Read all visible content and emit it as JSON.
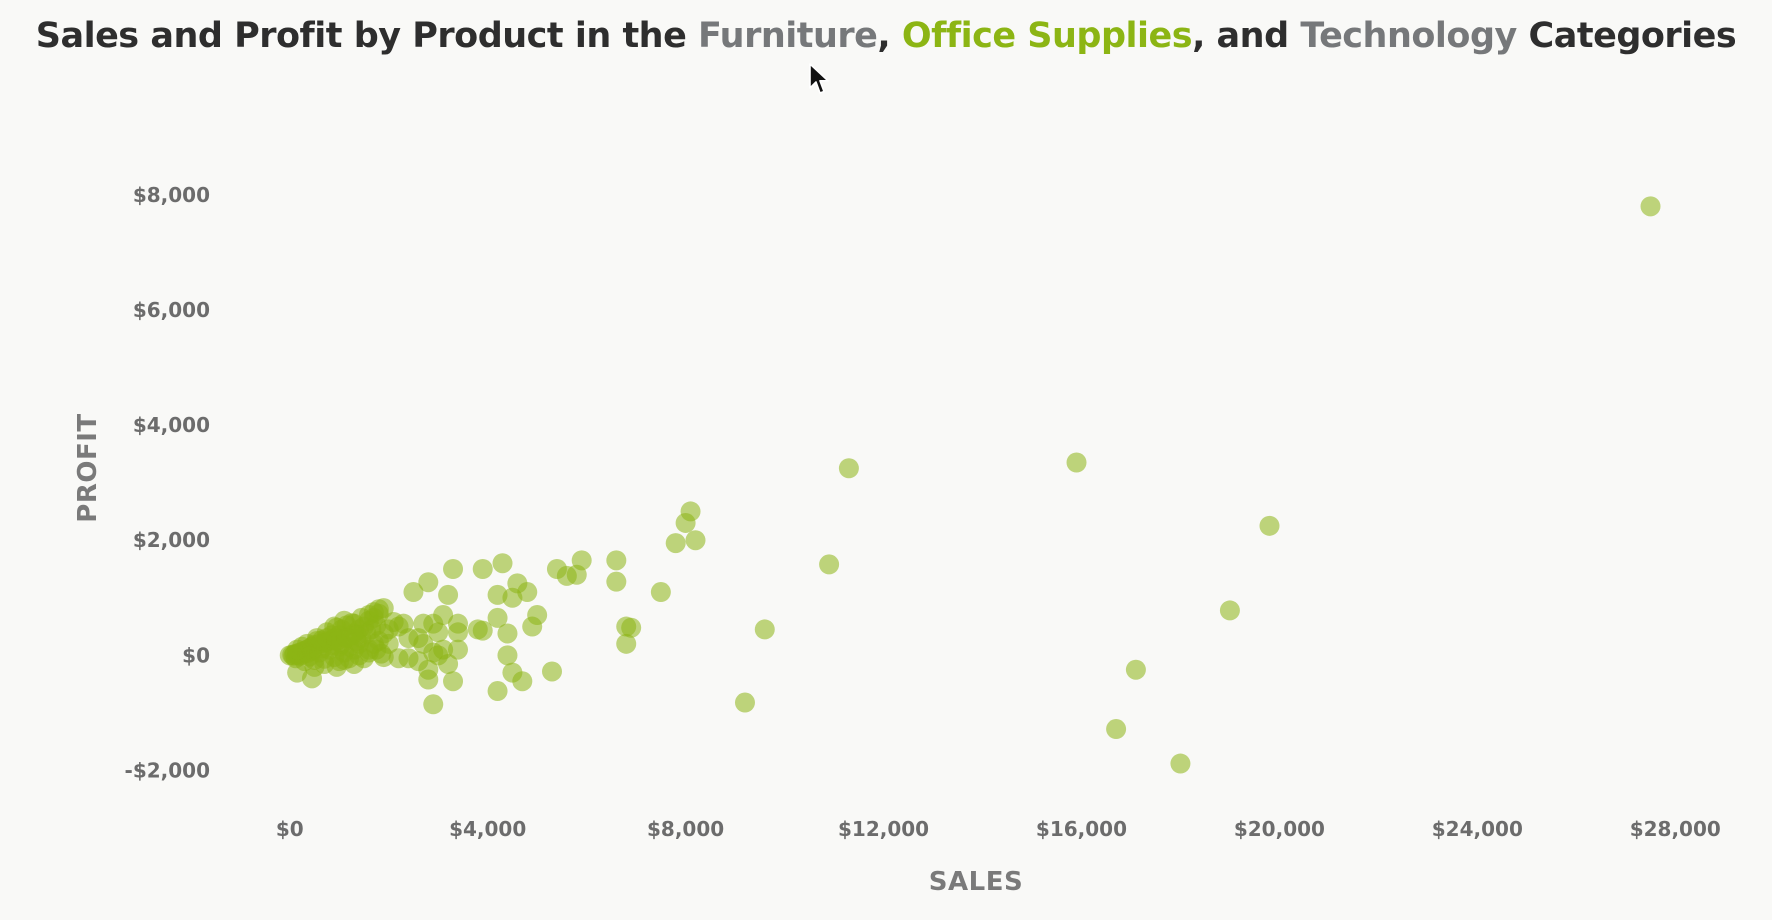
{
  "title": {
    "prefix": "Sales and Profit by Product in the ",
    "furniture": "Furniture",
    "sep1": ", ",
    "office_supplies": "Office Supplies",
    "sep2": ", and ",
    "technology": "Technology",
    "suffix": " Categories"
  },
  "colors": {
    "title_text": "#2e2e2e",
    "furniture": "#76787a",
    "office_supplies": "#8cb514",
    "technology": "#76787a",
    "point_fill": "#8cb514",
    "axis_text": "#6c6c6c",
    "background": "#f9f9f7"
  },
  "chart_data": {
    "type": "scatter",
    "xlabel": "SALES",
    "ylabel": "PROFIT",
    "xlim": [
      -500,
      28500
    ],
    "ylim": [
      -2600,
      9300
    ],
    "x_ticks": [
      {
        "value": 0,
        "label": "$0"
      },
      {
        "value": 4000,
        "label": "$4,000"
      },
      {
        "value": 8000,
        "label": "$8,000"
      },
      {
        "value": 12000,
        "label": "$12,000"
      },
      {
        "value": 16000,
        "label": "$16,000"
      },
      {
        "value": 20000,
        "label": "$20,000"
      },
      {
        "value": 24000,
        "label": "$24,000"
      },
      {
        "value": 28000,
        "label": "$28,000"
      }
    ],
    "y_ticks": [
      {
        "value": -2000,
        "label": "-$2,000"
      },
      {
        "value": 0,
        "label": "$0"
      },
      {
        "value": 2000,
        "label": "$2,000"
      },
      {
        "value": 4000,
        "label": "$4,000"
      },
      {
        "value": 6000,
        "label": "$6,000"
      },
      {
        "value": 8000,
        "label": "$8,000"
      }
    ],
    "grid": false,
    "legend": "none",
    "series": [
      {
        "category": "Office Supplies",
        "points": [
          [
            27500,
            7800
          ],
          [
            15900,
            3350
          ],
          [
            11300,
            3250
          ],
          [
            19800,
            2250
          ],
          [
            10900,
            1580
          ],
          [
            19000,
            780
          ],
          [
            17100,
            -250
          ],
          [
            16700,
            -1280
          ],
          [
            18000,
            -1880
          ],
          [
            9600,
            450
          ],
          [
            9200,
            -820
          ],
          [
            8100,
            2500
          ],
          [
            8000,
            2300
          ],
          [
            8200,
            2000
          ],
          [
            7800,
            1950
          ],
          [
            7500,
            1100
          ],
          [
            6800,
            500
          ],
          [
            6800,
            200
          ],
          [
            6900,
            480
          ],
          [
            6600,
            1650
          ],
          [
            6600,
            1280
          ],
          [
            5900,
            1650
          ],
          [
            5800,
            1400
          ],
          [
            5600,
            1380
          ],
          [
            5400,
            1500
          ],
          [
            5300,
            -280
          ],
          [
            5000,
            700
          ],
          [
            4800,
            1100
          ],
          [
            4900,
            500
          ],
          [
            4600,
            1250
          ],
          [
            4500,
            1000
          ],
          [
            4400,
            380
          ],
          [
            4300,
            1600
          ],
          [
            4200,
            1050
          ],
          [
            4200,
            650
          ],
          [
            4400,
            0
          ],
          [
            4500,
            -300
          ],
          [
            4700,
            -450
          ],
          [
            4200,
            -620
          ],
          [
            3900,
            1500
          ],
          [
            3900,
            430
          ],
          [
            3800,
            450
          ],
          [
            3400,
            550
          ],
          [
            3400,
            400
          ],
          [
            3300,
            1500
          ],
          [
            3400,
            100
          ],
          [
            3200,
            1050
          ],
          [
            3200,
            -150
          ],
          [
            3300,
            -450
          ],
          [
            3100,
            700
          ],
          [
            2900,
            550
          ],
          [
            3000,
            400
          ],
          [
            3100,
            100
          ],
          [
            3000,
            0
          ],
          [
            2900,
            50
          ],
          [
            2800,
            1270
          ],
          [
            2500,
            1100
          ],
          [
            2700,
            550
          ],
          [
            2600,
            300
          ],
          [
            2700,
            200
          ],
          [
            2600,
            -100
          ],
          [
            2800,
            -250
          ],
          [
            2800,
            -420
          ],
          [
            2900,
            -850
          ],
          [
            2400,
            300
          ],
          [
            2300,
            550
          ],
          [
            2200,
            500
          ],
          [
            2100,
            580
          ],
          [
            2000,
            450
          ],
          [
            2200,
            -50
          ],
          [
            2400,
            -50
          ],
          [
            1900,
            820
          ],
          [
            1800,
            720
          ],
          [
            1700,
            650
          ],
          [
            1900,
            380
          ],
          [
            1800,
            250
          ],
          [
            1850,
            30
          ],
          [
            1600,
            600
          ],
          [
            1500,
            500
          ],
          [
            1400,
            450
          ],
          [
            1700,
            200
          ],
          [
            1600,
            100
          ],
          [
            1500,
            -50
          ],
          [
            1300,
            380
          ],
          [
            1200,
            300
          ],
          [
            1300,
            -150
          ],
          [
            1100,
            -80
          ],
          [
            1000,
            350
          ],
          [
            900,
            300
          ],
          [
            950,
            -200
          ],
          [
            800,
            250
          ],
          [
            700,
            220
          ],
          [
            600,
            200
          ],
          [
            500,
            180
          ],
          [
            450,
            150
          ],
          [
            400,
            120
          ],
          [
            350,
            100
          ],
          [
            300,
            80
          ],
          [
            250,
            60
          ],
          [
            200,
            50
          ],
          [
            150,
            30
          ],
          [
            100,
            20
          ],
          [
            50,
            10
          ],
          [
            0,
            0
          ],
          [
            120,
            -50
          ],
          [
            300,
            -100
          ],
          [
            500,
            -80
          ],
          [
            700,
            -60
          ],
          [
            900,
            -30
          ],
          [
            1100,
            50
          ],
          [
            1200,
            150
          ],
          [
            1400,
            200
          ],
          [
            600,
            50
          ],
          [
            800,
            100
          ],
          [
            1000,
            150
          ],
          [
            400,
            -20
          ],
          [
            200,
            -10
          ],
          [
            1300,
            100
          ],
          [
            1450,
            300
          ],
          [
            1550,
            380
          ],
          [
            1650,
            450
          ],
          [
            1750,
            520
          ],
          [
            1350,
            250
          ],
          [
            1050,
            200
          ],
          [
            850,
            180
          ],
          [
            650,
            120
          ],
          [
            450,
            80
          ],
          [
            350,
            40
          ],
          [
            250,
            10
          ],
          [
            150,
            5
          ],
          [
            75,
            -5
          ],
          [
            550,
            300
          ],
          [
            750,
            400
          ],
          [
            950,
            480
          ],
          [
            1150,
            520
          ],
          [
            1250,
            560
          ],
          [
            1050,
            450
          ],
          [
            850,
            350
          ],
          [
            650,
            260
          ],
          [
            1600,
            700
          ],
          [
            1700,
            750
          ],
          [
            1800,
            800
          ],
          [
            500,
            -200
          ],
          [
            150,
            -300
          ],
          [
            450,
            -400
          ],
          [
            700,
            -150
          ],
          [
            1000,
            -100
          ],
          [
            1200,
            -50
          ],
          [
            1400,
            0
          ],
          [
            1600,
            50
          ],
          [
            1750,
            100
          ],
          [
            1900,
            -30
          ],
          [
            2000,
            200
          ],
          [
            900,
            500
          ],
          [
            1100,
            600
          ],
          [
            1300,
            550
          ],
          [
            1450,
            650
          ],
          [
            350,
            200
          ],
          [
            250,
            150
          ],
          [
            150,
            100
          ],
          [
            550,
            250
          ],
          [
            750,
            300
          ],
          [
            950,
            250
          ],
          [
            1150,
            300
          ],
          [
            1350,
            350
          ]
        ]
      }
    ]
  }
}
